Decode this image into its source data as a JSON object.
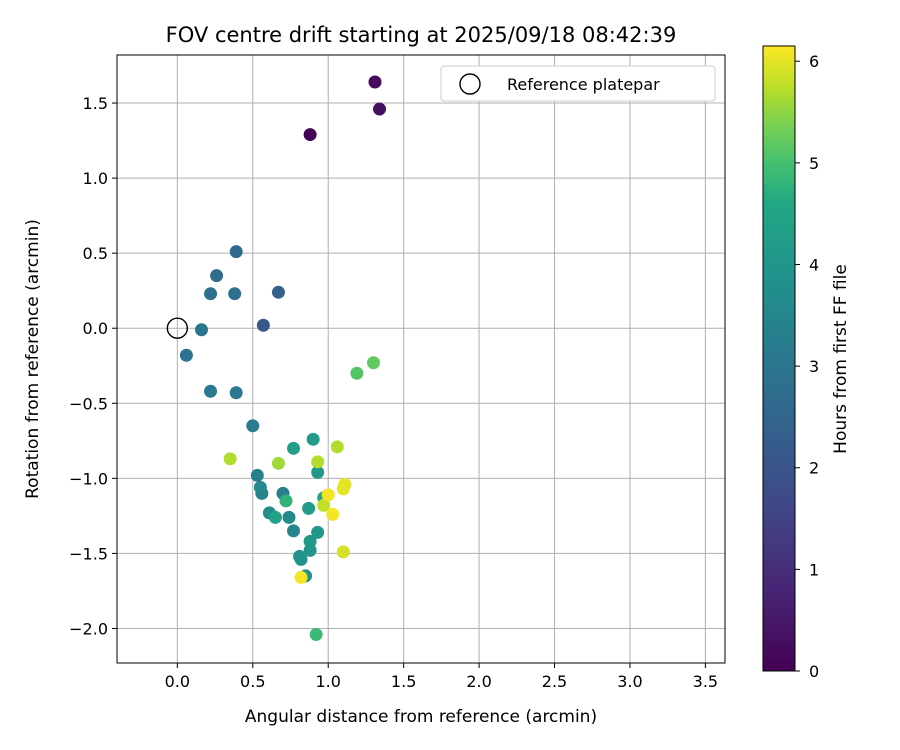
{
  "chart_data": {
    "type": "scatter",
    "title": "FOV centre drift starting at 2025/09/18 08:42:39",
    "xlabel": "Angular distance from reference (arcmin)",
    "ylabel": "Rotation from reference (arcmin)",
    "xlim": [
      -0.4,
      3.63
    ],
    "ylim": [
      -2.23,
      1.82
    ],
    "xticks": [
      0.0,
      0.5,
      1.0,
      1.5,
      2.0,
      2.5,
      3.0,
      3.5
    ],
    "xtick_labels": [
      "0.0",
      "0.5",
      "1.0",
      "1.5",
      "2.0",
      "2.5",
      "3.0",
      "3.5"
    ],
    "yticks": [
      -2.0,
      -1.5,
      -1.0,
      -0.5,
      0.0,
      0.5,
      1.0,
      1.5
    ],
    "ytick_labels": [
      "−2.0",
      "−1.5",
      "−1.0",
      "−0.5",
      "0.0",
      "0.5",
      "1.0",
      "1.5"
    ],
    "grid": true,
    "legend": {
      "placement": "upper-right",
      "entries": [
        "Reference platepar"
      ]
    },
    "reference_point": {
      "x": 0.0,
      "y": 0.0,
      "label": "Reference platepar"
    },
    "colorbar": {
      "label": "Hours from first FF file",
      "range": [
        0,
        6.15
      ],
      "ticks": [
        0,
        1,
        2,
        3,
        4,
        5,
        6
      ],
      "tick_labels": [
        "0",
        "1",
        "2",
        "3",
        "4",
        "5",
        "6"
      ],
      "colormap": "viridis"
    },
    "points": [
      {
        "x": 0.88,
        "y": 1.29,
        "hours": 0.05
      },
      {
        "x": 1.31,
        "y": 1.64,
        "hours": 0.2
      },
      {
        "x": 1.34,
        "y": 1.46,
        "hours": 0.3
      },
      {
        "x": 0.57,
        "y": 0.02,
        "hours": 2.1
      },
      {
        "x": 0.67,
        "y": 0.24,
        "hours": 2.3
      },
      {
        "x": 0.39,
        "y": 0.51,
        "hours": 2.6
      },
      {
        "x": 0.26,
        "y": 0.35,
        "hours": 2.7
      },
      {
        "x": 0.22,
        "y": 0.23,
        "hours": 2.8
      },
      {
        "x": 0.38,
        "y": 0.23,
        "hours": 2.8
      },
      {
        "x": 0.06,
        "y": -0.18,
        "hours": 2.9
      },
      {
        "x": 0.16,
        "y": -0.01,
        "hours": 3.0
      },
      {
        "x": 0.22,
        "y": -0.42,
        "hours": 3.1
      },
      {
        "x": 0.39,
        "y": -0.43,
        "hours": 3.1
      },
      {
        "x": 0.5,
        "y": -0.65,
        "hours": 3.2
      },
      {
        "x": 0.53,
        "y": -0.98,
        "hours": 3.3
      },
      {
        "x": 0.56,
        "y": -1.1,
        "hours": 3.4
      },
      {
        "x": 0.55,
        "y": -1.06,
        "hours": 3.6
      },
      {
        "x": 0.61,
        "y": -1.23,
        "hours": 3.7
      },
      {
        "x": 0.7,
        "y": -1.1,
        "hours": 3.3
      },
      {
        "x": 0.74,
        "y": -1.26,
        "hours": 3.6
      },
      {
        "x": 0.77,
        "y": -1.35,
        "hours": 3.5
      },
      {
        "x": 0.81,
        "y": -1.52,
        "hours": 3.9
      },
      {
        "x": 0.82,
        "y": -1.54,
        "hours": 3.9
      },
      {
        "x": 0.85,
        "y": -1.65,
        "hours": 3.8
      },
      {
        "x": 0.88,
        "y": -1.48,
        "hours": 4.0
      },
      {
        "x": 0.88,
        "y": -1.42,
        "hours": 4.1
      },
      {
        "x": 0.87,
        "y": -1.2,
        "hours": 4.2
      },
      {
        "x": 0.93,
        "y": -1.36,
        "hours": 4.0
      },
      {
        "x": 0.93,
        "y": -0.96,
        "hours": 4.0
      },
      {
        "x": 0.9,
        "y": -0.74,
        "hours": 4.2
      },
      {
        "x": 0.77,
        "y": -0.8,
        "hours": 4.3
      },
      {
        "x": 0.65,
        "y": -1.26,
        "hours": 4.4
      },
      {
        "x": 0.72,
        "y": -1.15,
        "hours": 4.8
      },
      {
        "x": 0.97,
        "y": -1.13,
        "hours": 4.5
      },
      {
        "x": 0.92,
        "y": -2.04,
        "hours": 4.9
      },
      {
        "x": 1.19,
        "y": -0.3,
        "hours": 5.1
      },
      {
        "x": 1.3,
        "y": -0.23,
        "hours": 5.2
      },
      {
        "x": 0.67,
        "y": -0.9,
        "hours": 5.6
      },
      {
        "x": 0.35,
        "y": -0.87,
        "hours": 5.7
      },
      {
        "x": 0.93,
        "y": -0.89,
        "hours": 5.7
      },
      {
        "x": 1.06,
        "y": -0.79,
        "hours": 5.7
      },
      {
        "x": 0.97,
        "y": -1.18,
        "hours": 5.8
      },
      {
        "x": 1.1,
        "y": -1.07,
        "hours": 6.0
      },
      {
        "x": 1.11,
        "y": -1.04,
        "hours": 6.0
      },
      {
        "x": 1.0,
        "y": -1.11,
        "hours": 6.1
      },
      {
        "x": 1.03,
        "y": -1.24,
        "hours": 6.1
      },
      {
        "x": 1.1,
        "y": -1.49,
        "hours": 5.9
      },
      {
        "x": 0.82,
        "y": -1.66,
        "hours": 6.1
      }
    ]
  }
}
